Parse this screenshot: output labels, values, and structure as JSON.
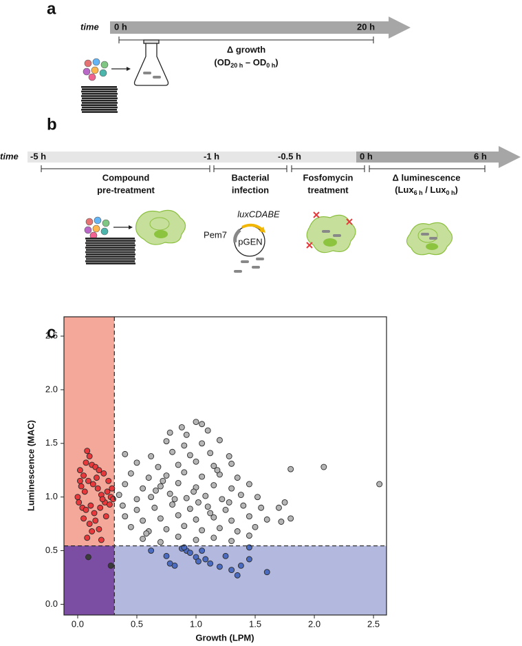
{
  "panel_a": {
    "label": "a",
    "time": "time",
    "start": "0 h",
    "end": "20 h",
    "measure_title": "Δ growth",
    "formula": [
      "(OD",
      "20 h",
      " – OD",
      "0 h",
      ")"
    ]
  },
  "panel_b": {
    "label": "b",
    "time": "time",
    "ticks": [
      "-5 h",
      "-1 h",
      "-0.5 h",
      "0 h",
      "6 h"
    ],
    "steps": [
      [
        "Compound",
        "pre-treatment"
      ],
      [
        "Bacterial",
        "infection"
      ],
      [
        "Fosfomycin",
        "treatment"
      ]
    ],
    "measure_title": "Δ luminescence",
    "formula": [
      "(Lux",
      "6 h",
      " / Lux",
      "0 h",
      ")"
    ],
    "plasmid": {
      "operon": "luxCDABE",
      "promoter": "Pem7",
      "name": "pGEN"
    }
  },
  "panel_c": {
    "label": "c"
  },
  "chart_data": {
    "type": "scatter",
    "xlabel": "Growth (LPM)",
    "ylabel": "Luminescence (MAC)",
    "xlim": [
      -0.116,
      2.61
    ],
    "ylim": [
      -0.1,
      2.68
    ],
    "xticks": [
      {
        "value": 0,
        "label": "0.0"
      },
      {
        "value": 0.5,
        "label": "0.5"
      },
      {
        "value": 1,
        "label": "1.0"
      },
      {
        "value": 1.5,
        "label": "1.5"
      },
      {
        "value": 2,
        "label": "2.0"
      },
      {
        "value": 2.5,
        "label": "2.5"
      }
    ],
    "yticks": [
      {
        "value": 0,
        "label": "0.0"
      },
      {
        "value": 0.5,
        "label": "0.5"
      },
      {
        "value": 1,
        "label": "1.0"
      },
      {
        "value": 1.5,
        "label": "1.5"
      },
      {
        "value": 2,
        "label": "2.0"
      },
      {
        "value": 2.5,
        "label": "2.5"
      }
    ],
    "x_threshold": 0.31,
    "y_threshold": 0.545,
    "region_colors": {
      "low_growth": "#f4a899",
      "both": "#7b4ea3",
      "low_luminescence": "#b3b8de"
    },
    "series": [
      {
        "color": "#b5b5b5",
        "x": [
          0.55,
          0.7,
          0.85,
          1.0,
          1.15,
          1.3,
          1.45,
          0.45,
          0.6,
          0.75,
          0.9,
          1.05,
          1.2,
          1.35,
          1.5,
          0.4,
          0.55,
          0.7,
          0.85,
          1.0,
          1.15,
          1.3,
          1.45,
          1.6,
          0.38,
          0.5,
          0.65,
          0.8,
          0.95,
          1.1,
          1.25,
          1.4,
          1.55,
          0.35,
          0.5,
          0.62,
          0.78,
          0.92,
          1.08,
          1.22,
          1.38,
          1.52,
          0.4,
          0.55,
          0.7,
          0.85,
          1.0,
          1.15,
          1.3,
          1.45,
          0.45,
          0.6,
          0.75,
          0.9,
          1.05,
          1.2,
          1.35,
          0.5,
          0.68,
          0.85,
          1.0,
          1.15,
          1.3,
          0.4,
          0.62,
          0.8,
          0.95,
          1.12,
          1.28,
          0.75,
          0.9,
          1.05,
          1.2,
          0.78,
          0.92,
          1.1,
          1.0,
          1.05,
          0.88,
          1.8,
          2.08,
          2.55,
          1.75,
          1.7,
          1.72,
          1.8,
          0.98,
          1.02,
          1.12,
          0.72,
          0.82,
          0.66,
          1.18,
          1.28,
          0.58
        ],
        "values": [
          0.61,
          0.58,
          0.63,
          0.6,
          0.62,
          0.59,
          0.64,
          0.72,
          0.68,
          0.7,
          0.73,
          0.69,
          0.71,
          0.68,
          0.72,
          0.82,
          0.78,
          0.8,
          0.83,
          0.79,
          0.81,
          0.78,
          0.82,
          0.79,
          0.92,
          0.88,
          0.9,
          0.93,
          0.89,
          0.91,
          0.88,
          0.92,
          0.9,
          1.02,
          0.98,
          1.0,
          1.03,
          0.99,
          1.01,
          0.98,
          1.02,
          1.0,
          1.12,
          1.08,
          1.1,
          1.13,
          1.09,
          1.11,
          1.08,
          1.12,
          1.22,
          1.18,
          1.2,
          1.23,
          1.19,
          1.21,
          1.18,
          1.32,
          1.28,
          1.3,
          1.33,
          1.29,
          1.31,
          1.4,
          1.38,
          1.42,
          1.39,
          1.41,
          1.38,
          1.52,
          1.48,
          1.5,
          1.53,
          1.6,
          1.58,
          1.62,
          1.7,
          1.68,
          1.65,
          1.26,
          1.28,
          1.12,
          0.95,
          0.9,
          0.77,
          0.8,
          1.05,
          0.95,
          0.85,
          1.15,
          0.98,
          1.06,
          1.25,
          0.95,
          0.66
        ]
      },
      {
        "color": "#e8383b",
        "x": [
          0.02,
          0.05,
          0.08,
          0.1,
          0.12,
          0.15,
          0.18,
          0.22,
          0.03,
          0.06,
          0.09,
          0.13,
          0.17,
          0.2,
          0.25,
          0.28,
          0.3,
          0.01,
          0.04,
          0.07,
          0.11,
          0.14,
          0.19,
          0.23,
          0.27,
          0.0,
          0.05,
          0.1,
          0.15,
          0.12,
          0.18,
          0.08,
          0.2,
          0.24,
          0.26,
          0.16,
          0.02,
          0.07,
          0.21,
          0.29
        ],
        "values": [
          1.25,
          1.2,
          1.43,
          1.38,
          1.3,
          1.28,
          1.25,
          1.22,
          1.1,
          1.05,
          1.15,
          1.12,
          1.08,
          1.02,
          1.05,
          1.0,
          0.98,
          0.95,
          0.9,
          0.88,
          0.92,
          0.85,
          0.9,
          0.95,
          0.93,
          1.0,
          0.8,
          0.75,
          0.78,
          0.68,
          0.7,
          0.62,
          0.6,
          0.82,
          1.15,
          1.18,
          1.15,
          1.32,
          0.98,
          1.08
        ]
      },
      {
        "color": "#3b3b3b",
        "x": [
          0.09,
          0.28
        ],
        "values": [
          0.44,
          0.36
        ]
      },
      {
        "color": "#4a6bbf",
        "x": [
          0.62,
          0.75,
          0.78,
          0.82,
          0.88,
          0.92,
          0.95,
          1.0,
          1.02,
          1.05,
          1.08,
          1.12,
          1.2,
          1.25,
          1.3,
          1.35,
          1.38,
          1.45,
          1.45,
          1.6,
          0.9
        ],
        "values": [
          0.5,
          0.45,
          0.38,
          0.36,
          0.52,
          0.5,
          0.48,
          0.44,
          0.4,
          0.5,
          0.42,
          0.38,
          0.35,
          0.45,
          0.32,
          0.27,
          0.36,
          0.42,
          0.53,
          0.3,
          0.53
        ]
      }
    ]
  }
}
